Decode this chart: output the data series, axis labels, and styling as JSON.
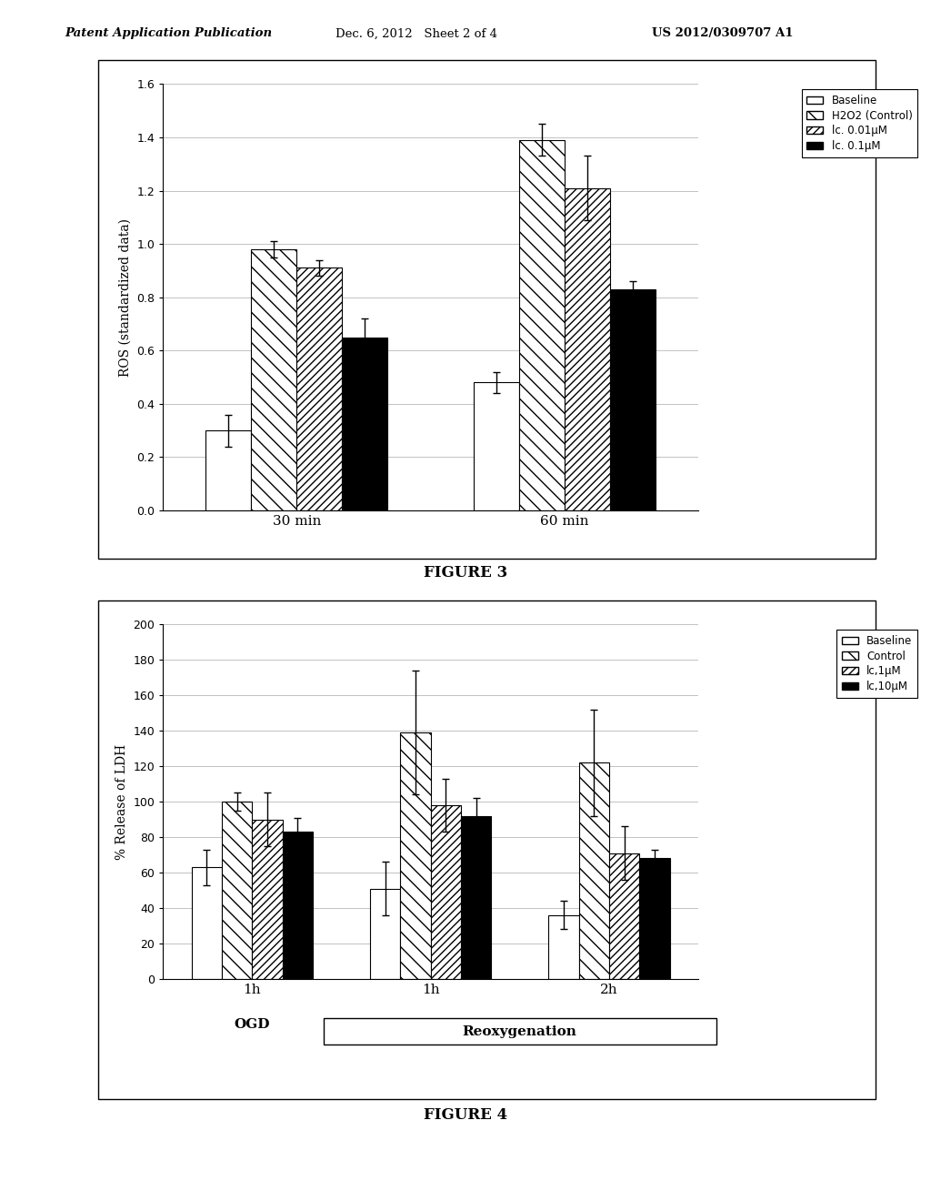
{
  "fig3": {
    "ylabel": "ROS (standardized data)",
    "ylim": [
      0,
      1.6
    ],
    "yticks": [
      0,
      0.2,
      0.4,
      0.6,
      0.8,
      1.0,
      1.2,
      1.4,
      1.6
    ],
    "groups": [
      "30 min",
      "60 min"
    ],
    "series": [
      "Baseline",
      "H2O2 (Control)",
      "lc. 0.01μM",
      "lc. 0.1μM"
    ],
    "values": [
      [
        0.3,
        0.98,
        0.91,
        0.65
      ],
      [
        0.48,
        1.39,
        1.21,
        0.83
      ]
    ],
    "errors": [
      [
        0.06,
        0.03,
        0.03,
        0.07
      ],
      [
        0.04,
        0.06,
        0.12,
        0.03
      ]
    ],
    "hatch_patterns": [
      "",
      "\\\\",
      "////",
      ""
    ],
    "bar_colors": [
      "white",
      "white",
      "white",
      "black"
    ],
    "edge_colors": [
      "black",
      "black",
      "black",
      "black"
    ]
  },
  "fig4": {
    "ylabel": "% Release of LDH",
    "ylim": [
      0,
      200
    ],
    "yticks": [
      0,
      20,
      40,
      60,
      80,
      100,
      120,
      140,
      160,
      180,
      200
    ],
    "groups": [
      "1h",
      "1h",
      "2h"
    ],
    "series": [
      "Baseline",
      "Control",
      "lc,1μM",
      "lc,10μM"
    ],
    "values": [
      [
        63,
        100,
        90,
        83
      ],
      [
        51,
        139,
        98,
        92
      ],
      [
        36,
        122,
        71,
        68
      ]
    ],
    "errors": [
      [
        10,
        5,
        15,
        8
      ],
      [
        15,
        35,
        15,
        10
      ],
      [
        8,
        30,
        15,
        5
      ]
    ],
    "hatch_patterns": [
      "",
      "\\\\",
      "////",
      ""
    ],
    "bar_colors": [
      "white",
      "white",
      "white",
      "black"
    ],
    "edge_colors": [
      "black",
      "black",
      "black",
      "black"
    ]
  },
  "header_left": "Patent Application Publication",
  "header_mid": "Dec. 6, 2012   Sheet 2 of 4",
  "header_right": "US 2012/0309707 A1",
  "fig3_label": "FIGURE 3",
  "fig4_label": "FIGURE 4",
  "ogd_label": "OGD",
  "reox_label": "Reoxygenation",
  "background_color": "#ffffff"
}
